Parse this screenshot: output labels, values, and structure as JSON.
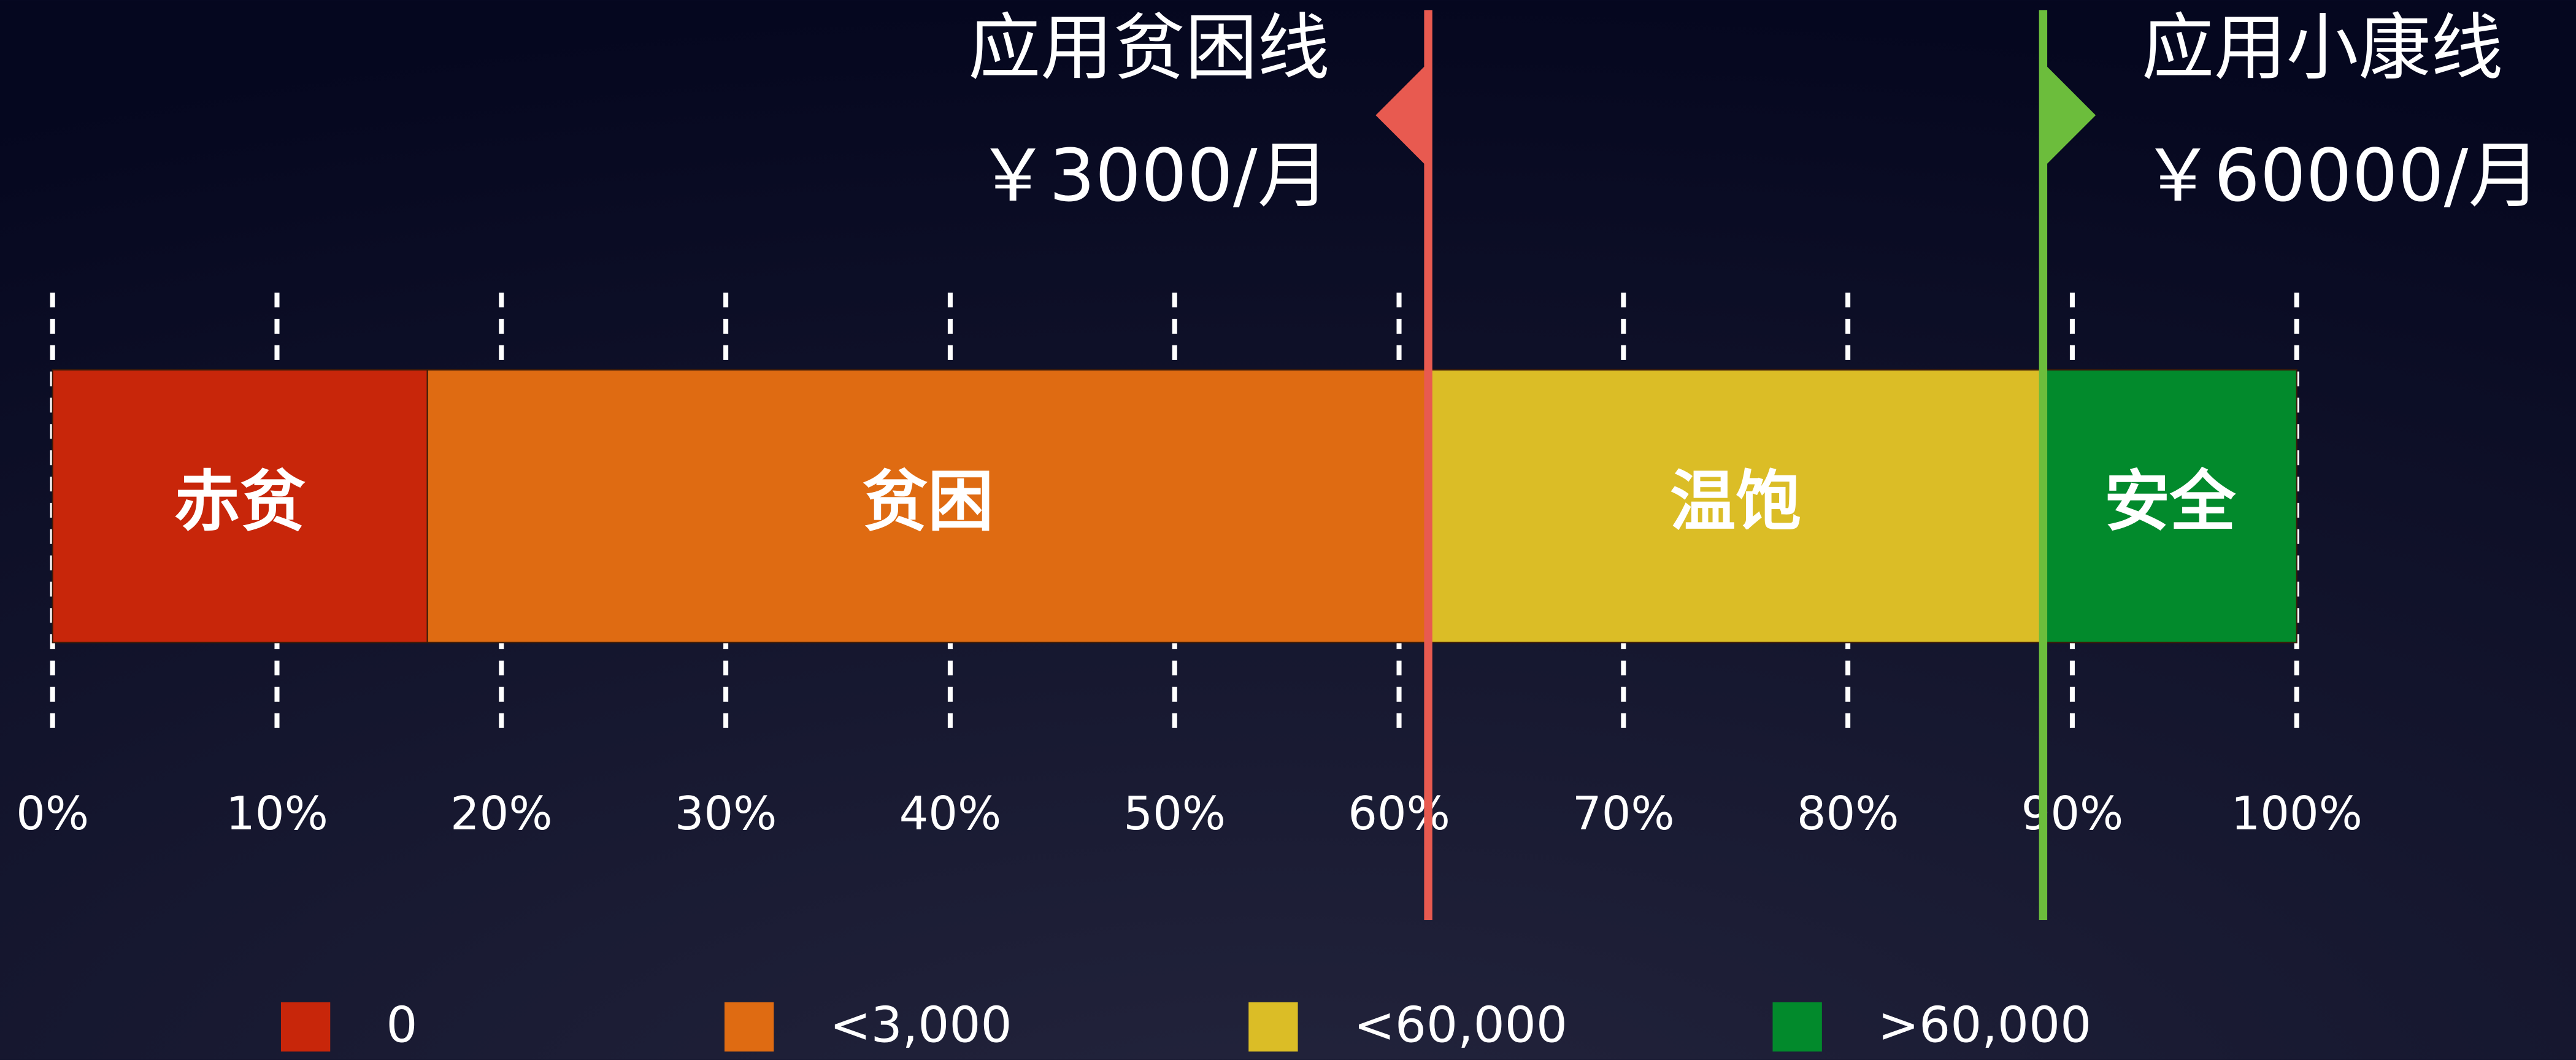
{
  "chart_data": {
    "type": "bar",
    "orientation": "horizontal",
    "stacked": true,
    "xlim": [
      0,
      100
    ],
    "xticks": [
      {
        "value": 0,
        "label": "0%"
      },
      {
        "value": 10,
        "label": "10%"
      },
      {
        "value": 20,
        "label": "20%"
      },
      {
        "value": 30,
        "label": "30%"
      },
      {
        "value": 40,
        "label": "40%"
      },
      {
        "value": 50,
        "label": "50%"
      },
      {
        "value": 60,
        "label": "60%"
      },
      {
        "value": 70,
        "label": "70%"
      },
      {
        "value": 80,
        "label": "80%"
      },
      {
        "value": 90,
        "label": "90%"
      },
      {
        "value": 100,
        "label": "100%"
      }
    ],
    "grid": true,
    "legend": "bottom",
    "series": [
      {
        "name": "0",
        "label": "赤贫",
        "color": "#c8260a",
        "values": [
          16.7
        ]
      },
      {
        "name": "<3,000",
        "label": "贫困",
        "color": "#df6b12",
        "values": [
          44.6
        ]
      },
      {
        "name": "<60,000",
        "label": "温饱",
        "color": "#dbbd26",
        "values": [
          27.4
        ]
      },
      {
        "name": ">60,000",
        "label": "安全",
        "color": "#028a2c",
        "values": [
          11.3
        ]
      }
    ],
    "reference_lines": [
      {
        "value": 61.3,
        "color": "#e85a50",
        "flag": "left",
        "title": "应用贫困线",
        "subtitle": "￥3000/月"
      },
      {
        "value": 88.7,
        "color": "#6cbd3c",
        "flag": "right",
        "title": "应用小康线",
        "subtitle": "￥60000/月"
      }
    ]
  }
}
